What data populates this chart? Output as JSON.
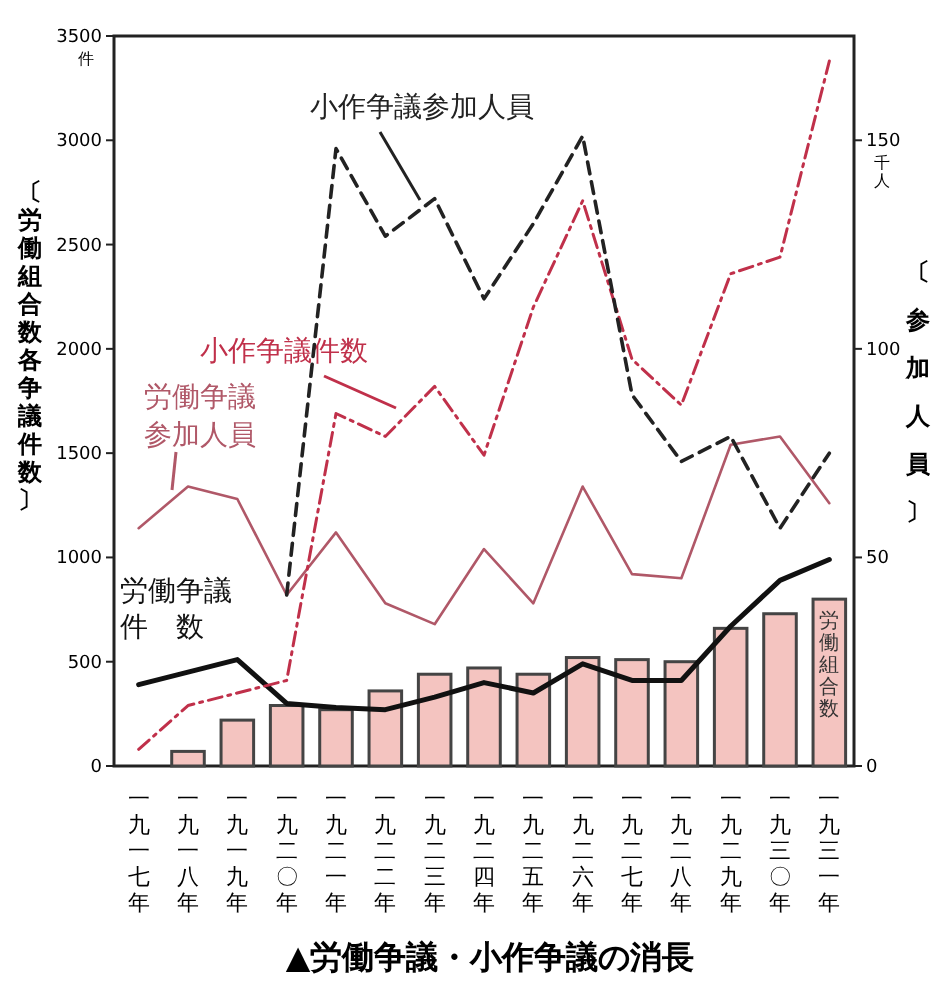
{
  "chart_data": {
    "type": "line",
    "title": "▲労働争議・小作争議の消長",
    "ylabel": "〔労働組合数各争議件数〕",
    "y2label": "〔参加人員〕",
    "annotations": [
      "件",
      "千人"
    ],
    "categories": [
      "一九一七年",
      "一九一八年",
      "一九一九年",
      "一九二〇年",
      "一九二一年",
      "一九二二年",
      "一九二三年",
      "一九二四年",
      "一九二五年",
      "一九二六年",
      "一九二七年",
      "一九二八年",
      "一九二九年",
      "一九三〇年",
      "一九三一年"
    ],
    "series": [
      {
        "name": "労働組合数",
        "type": "bar",
        "color": "#f4c4c0",
        "values": [
          null,
          70,
          220,
          290,
          270,
          360,
          440,
          470,
          440,
          520,
          510,
          500,
          660,
          730,
          800
        ]
      },
      {
        "name": "労働争議件数",
        "line_style": "solid",
        "color": "#111111",
        "values": [
          390,
          450,
          510,
          300,
          280,
          270,
          330,
          400,
          350,
          490,
          410,
          410,
          670,
          890,
          990
        ]
      },
      {
        "name": "労働争議参加人員",
        "axis": "y2",
        "line_style": "solid",
        "color": "#b05868",
        "values": [
          57,
          67,
          64,
          41,
          56,
          39,
          34,
          52,
          39,
          67,
          46,
          45,
          77,
          79,
          63
        ]
      },
      {
        "name": "小作争議件数",
        "line_style": "dashdot",
        "color": "#c0304a",
        "values": [
          80,
          290,
          350,
          410,
          1690,
          1580,
          1820,
          1490,
          2200,
          2710,
          1950,
          1730,
          2360,
          2440,
          3380
        ]
      },
      {
        "name": "小作争議参加人員",
        "axis": "y2",
        "line_style": "dashed",
        "color": "#222222",
        "values": [
          null,
          null,
          null,
          41,
          148,
          127,
          136,
          112,
          130,
          151,
          89,
          73,
          79,
          57,
          75
        ]
      }
    ],
    "ylim": [
      0,
      3500
    ],
    "yticks": [
      0,
      500,
      1000,
      1500,
      2000,
      2500,
      3000,
      3500
    ],
    "y2lim": [
      0,
      175
    ],
    "y2ticks": [
      0,
      50,
      100,
      150
    ],
    "grid": false
  }
}
